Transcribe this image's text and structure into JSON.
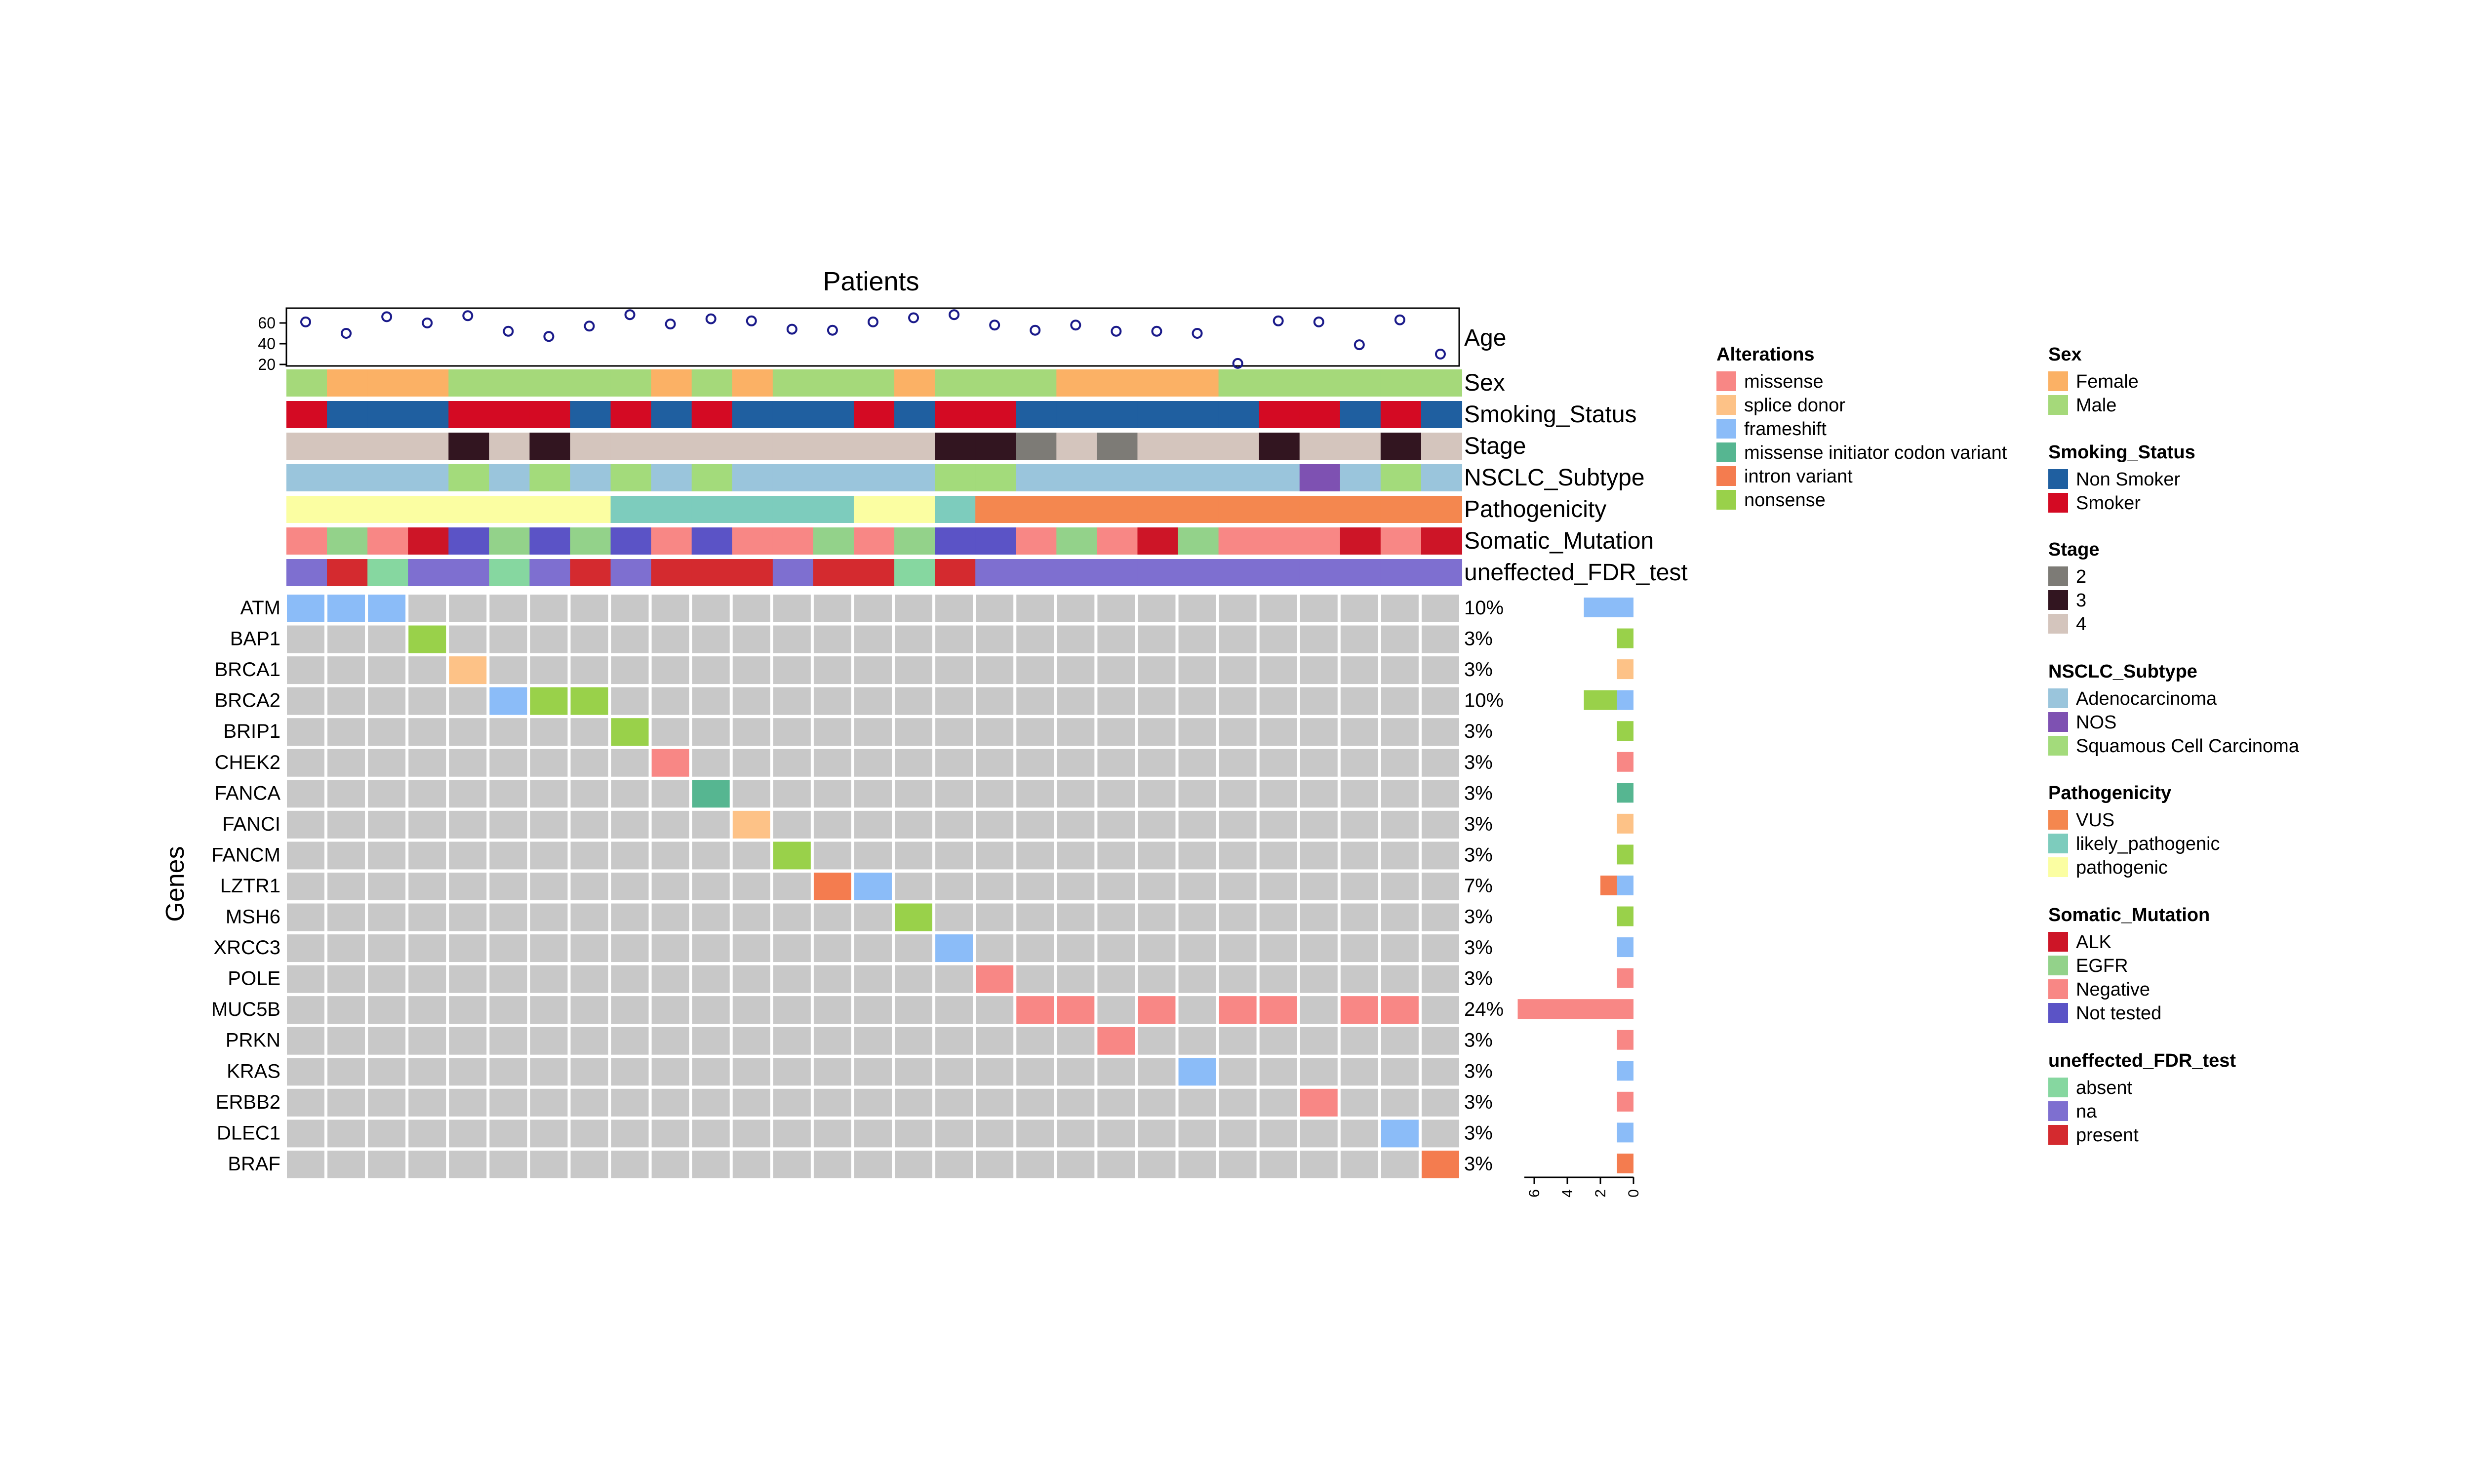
{
  "chart_data": {
    "type": "heatmap",
    "title": "Patients",
    "row_axis_label": "Genes",
    "patients": 29,
    "age": {
      "label": "Age",
      "ticks": [
        20,
        40,
        60
      ],
      "values": [
        61,
        50,
        66,
        60,
        67,
        52,
        47,
        57,
        68,
        59,
        64,
        62,
        54,
        53,
        61,
        65,
        68,
        58,
        53,
        58,
        52,
        52,
        50,
        21,
        62,
        61,
        39,
        63,
        30
      ]
    },
    "annotations": [
      {
        "label": "Sex",
        "values": [
          "Male",
          "Female",
          "Female",
          "Female",
          "Male",
          "Male",
          "Male",
          "Male",
          "Male",
          "Female",
          "Male",
          "Female",
          "Male",
          "Male",
          "Male",
          "Female",
          "Male",
          "Male",
          "Male",
          "Female",
          "Female",
          "Female",
          "Female",
          "Male",
          "Male",
          "Male",
          "Male",
          "Male",
          "Male"
        ]
      },
      {
        "label": "Smoking_Status",
        "values": [
          "Smoker",
          "Non Smoker",
          "Non Smoker",
          "Non Smoker",
          "Smoker",
          "Smoker",
          "Smoker",
          "Non Smoker",
          "Smoker",
          "Non Smoker",
          "Smoker",
          "Non Smoker",
          "Non Smoker",
          "Non Smoker",
          "Smoker",
          "Non Smoker",
          "Smoker",
          "Smoker",
          "Non Smoker",
          "Non Smoker",
          "Non Smoker",
          "Non Smoker",
          "Non Smoker",
          "Non Smoker",
          "Smoker",
          "Smoker",
          "Non Smoker",
          "Smoker",
          "Non Smoker"
        ]
      },
      {
        "label": "Stage",
        "values": [
          "4",
          "4",
          "4",
          "4",
          "3",
          "4",
          "3",
          "4",
          "4",
          "4",
          "4",
          "4",
          "4",
          "4",
          "4",
          "4",
          "3",
          "3",
          "2",
          "4",
          "2",
          "4",
          "4",
          "4",
          "3",
          "4",
          "4",
          "3",
          "4"
        ]
      },
      {
        "label": "NSCLC_Subtype",
        "values": [
          "Adenocarcinoma",
          "Adenocarcinoma",
          "Adenocarcinoma",
          "Adenocarcinoma",
          "Squamous Cell Carcinoma",
          "Adenocarcinoma",
          "Squamous Cell Carcinoma",
          "Adenocarcinoma",
          "Squamous Cell Carcinoma",
          "Adenocarcinoma",
          "Squamous Cell Carcinoma",
          "Adenocarcinoma",
          "Adenocarcinoma",
          "Adenocarcinoma",
          "Adenocarcinoma",
          "Adenocarcinoma",
          "Squamous Cell Carcinoma",
          "Squamous Cell Carcinoma",
          "Adenocarcinoma",
          "Adenocarcinoma",
          "Adenocarcinoma",
          "Adenocarcinoma",
          "Adenocarcinoma",
          "Adenocarcinoma",
          "Adenocarcinoma",
          "NOS",
          "Adenocarcinoma",
          "Squamous Cell Carcinoma",
          "Adenocarcinoma"
        ]
      },
      {
        "label": "Pathogenicity",
        "values": [
          "pathogenic",
          "pathogenic",
          "pathogenic",
          "pathogenic",
          "pathogenic",
          "pathogenic",
          "pathogenic",
          "pathogenic",
          "likely_pathogenic",
          "likely_pathogenic",
          "likely_pathogenic",
          "likely_pathogenic",
          "likely_pathogenic",
          "likely_pathogenic",
          "pathogenic",
          "pathogenic",
          "likely_pathogenic",
          "VUS",
          "VUS",
          "VUS",
          "VUS",
          "VUS",
          "VUS",
          "VUS",
          "VUS",
          "VUS",
          "VUS",
          "VUS",
          "VUS"
        ]
      },
      {
        "label": "Somatic_Mutation",
        "values": [
          "Negative",
          "EGFR",
          "Negative",
          "ALK",
          "Not tested",
          "EGFR",
          "Not tested",
          "EGFR",
          "Not tested",
          "Negative",
          "Not tested",
          "Negative",
          "Negative",
          "EGFR",
          "Negative",
          "EGFR",
          "Not tested",
          "Not tested",
          "Negative",
          "EGFR",
          "Negative",
          "ALK",
          "EGFR",
          "Negative",
          "Negative",
          "Negative",
          "ALK",
          "Negative",
          "ALK"
        ]
      },
      {
        "label": "uneffected_FDR_test",
        "values": [
          "na",
          "present",
          "absent",
          "na",
          "na",
          "absent",
          "na",
          "present",
          "na",
          "present",
          "present",
          "present",
          "na",
          "present",
          "present",
          "absent",
          "present",
          "na",
          "na",
          "na",
          "na",
          "na",
          "na",
          "na",
          "na",
          "na",
          "na",
          "na",
          "na"
        ]
      }
    ],
    "genes": [
      "ATM",
      "BAP1",
      "BRCA1",
      "BRCA2",
      "BRIP1",
      "CHEK2",
      "FANCA",
      "FANCI",
      "FANCM",
      "LZTR1",
      "MSH6",
      "XRCC3",
      "POLE",
      "MUC5B",
      "PRKN",
      "KRAS",
      "ERBB2",
      "DLEC1",
      "BRAF"
    ],
    "percentages": [
      "10%",
      "3%",
      "3%",
      "10%",
      "3%",
      "3%",
      "3%",
      "3%",
      "3%",
      "7%",
      "3%",
      "3%",
      "3%",
      "24%",
      "3%",
      "3%",
      "3%",
      "3%",
      "3%"
    ],
    "mutations": [
      {
        "gene": "ATM",
        "patient": 1,
        "type": "frameshift"
      },
      {
        "gene": "ATM",
        "patient": 2,
        "type": "frameshift"
      },
      {
        "gene": "ATM",
        "patient": 3,
        "type": "frameshift"
      },
      {
        "gene": "BAP1",
        "patient": 4,
        "type": "nonsense"
      },
      {
        "gene": "BRCA1",
        "patient": 5,
        "type": "splice donor"
      },
      {
        "gene": "BRCA2",
        "patient": 6,
        "type": "frameshift"
      },
      {
        "gene": "BRCA2",
        "patient": 7,
        "type": "nonsense"
      },
      {
        "gene": "BRCA2",
        "patient": 8,
        "type": "nonsense"
      },
      {
        "gene": "BRIP1",
        "patient": 9,
        "type": "nonsense"
      },
      {
        "gene": "CHEK2",
        "patient": 10,
        "type": "missense"
      },
      {
        "gene": "FANCA",
        "patient": 11,
        "type": "missense initiator codon variant"
      },
      {
        "gene": "FANCI",
        "patient": 12,
        "type": "splice donor"
      },
      {
        "gene": "FANCM",
        "patient": 13,
        "type": "nonsense"
      },
      {
        "gene": "LZTR1",
        "patient": 14,
        "type": "intron variant"
      },
      {
        "gene": "LZTR1",
        "patient": 15,
        "type": "frameshift"
      },
      {
        "gene": "MSH6",
        "patient": 16,
        "type": "nonsense"
      },
      {
        "gene": "XRCC3",
        "patient": 17,
        "type": "frameshift"
      },
      {
        "gene": "POLE",
        "patient": 18,
        "type": "missense"
      },
      {
        "gene": "MUC5B",
        "patient": 19,
        "type": "missense"
      },
      {
        "gene": "MUC5B",
        "patient": 20,
        "type": "missense"
      },
      {
        "gene": "MUC5B",
        "patient": 22,
        "type": "missense"
      },
      {
        "gene": "MUC5B",
        "patient": 24,
        "type": "missense"
      },
      {
        "gene": "MUC5B",
        "patient": 25,
        "type": "missense"
      },
      {
        "gene": "MUC5B",
        "patient": 27,
        "type": "missense"
      },
      {
        "gene": "MUC5B",
        "patient": 28,
        "type": "missense"
      },
      {
        "gene": "PRKN",
        "patient": 21,
        "type": "missense"
      },
      {
        "gene": "KRAS",
        "patient": 23,
        "type": "frameshift"
      },
      {
        "gene": "ERBB2",
        "patient": 26,
        "type": "missense"
      },
      {
        "gene": "DLEC1",
        "patient": 28,
        "type": "frameshift"
      },
      {
        "gene": "BRAF",
        "patient": 29,
        "type": "intron variant"
      }
    ],
    "bar_axis_ticks": [
      0,
      2,
      4,
      6
    ],
    "legends": [
      {
        "title": "Alterations",
        "items": [
          {
            "label": "missense",
            "color": "#f88785"
          },
          {
            "label": "splice donor",
            "color": "#fdc287"
          },
          {
            "label": "frameshift",
            "color": "#8bbcf8"
          },
          {
            "label": "missense initiator codon variant",
            "color": "#56b691"
          },
          {
            "label": "intron variant",
            "color": "#f47c4f"
          },
          {
            "label": "nonsense",
            "color": "#99d14a"
          }
        ]
      },
      {
        "title": "Sex",
        "items": [
          {
            "label": "Female",
            "color": "#fbb165"
          },
          {
            "label": "Male",
            "color": "#a5d97a"
          }
        ]
      },
      {
        "title": "Smoking_Status",
        "items": [
          {
            "label": "Non Smoker",
            "color": "#1f5fa0"
          },
          {
            "label": "Smoker",
            "color": "#d40a23"
          }
        ]
      },
      {
        "title": "Stage",
        "items": [
          {
            "label": "2",
            "color": "#7d7b76"
          },
          {
            "label": "3",
            "color": "#321520"
          },
          {
            "label": "4",
            "color": "#d4c5bd"
          }
        ]
      },
      {
        "title": "NSCLC_Subtype",
        "items": [
          {
            "label": "Adenocarcinoma",
            "color": "#9ac5dc"
          },
          {
            "label": "NOS",
            "color": "#7e51b2"
          },
          {
            "label": "Squamous Cell Carcinoma",
            "color": "#a3db7b"
          }
        ]
      },
      {
        "title": "Pathogenicity",
        "items": [
          {
            "label": "VUS",
            "color": "#f4874f"
          },
          {
            "label": "likely_pathogenic",
            "color": "#7dccbd"
          },
          {
            "label": "pathogenic",
            "color": "#fbfea2"
          }
        ]
      },
      {
        "title": "Somatic_Mutation",
        "items": [
          {
            "label": "ALK",
            "color": "#cd1527"
          },
          {
            "label": "EGFR",
            "color": "#93d28a"
          },
          {
            "label": "Negative",
            "color": "#f88785"
          },
          {
            "label": "Not tested",
            "color": "#5b53c6"
          }
        ]
      },
      {
        "title": "uneffected_FDR_test",
        "items": [
          {
            "label": "absent",
            "color": "#86d7a0"
          },
          {
            "label": "na",
            "color": "#7e6fd0"
          },
          {
            "label": "present",
            "color": "#d42a2f"
          }
        ]
      }
    ],
    "background_cell_color": "#c8c8c8"
  }
}
